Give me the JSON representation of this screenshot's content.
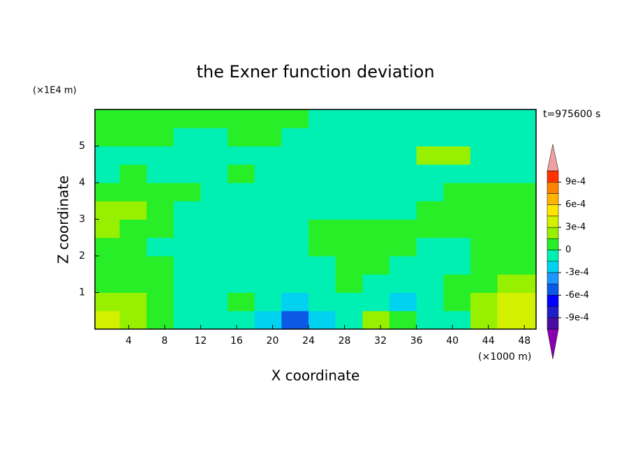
{
  "chart_data": {
    "type": "contour",
    "title": "the Exner function deviation",
    "x_label": "X coordinate",
    "y_label": "Z coordinate",
    "x_unit": "(×1000 m)",
    "y_unit": "(×1E4 m)",
    "time_label": "t=975600 s",
    "xlim": [
      0.25,
      49.3
    ],
    "ylim": [
      0,
      6
    ],
    "xticks": [
      4,
      8,
      12,
      16,
      20,
      24,
      28,
      32,
      36,
      40,
      44,
      48
    ],
    "yticks": [
      1,
      2,
      3,
      4,
      5
    ],
    "x": [
      1.5,
      4.5,
      7.5,
      10.5,
      13.5,
      16.5,
      19.5,
      22.5,
      25.5,
      28.5,
      31.5,
      34.5,
      37.5,
      40.5,
      43.5,
      46.5
    ],
    "y": [
      0.25,
      0.75,
      1.25,
      1.75,
      2.25,
      2.75,
      3.25,
      3.75,
      4.25,
      4.75,
      5.25,
      5.75
    ],
    "z": [
      [
        0.0004,
        0.0002,
        0.0001,
        -0.0001,
        -0.0001,
        -0.0001,
        -0.0002,
        -0.0005,
        -0.0002,
        -0.0001,
        0.0002,
        0.0001,
        -0.0001,
        -0.0001,
        0.0002,
        0.0004
      ],
      [
        0.0002,
        0.0002,
        0.0001,
        -0.0001,
        -0.0001,
        0.0001,
        -0.0001,
        -0.0002,
        -0.0001,
        -0.0001,
        -0.0001,
        -0.0002,
        -0.0001,
        0.0001,
        0.0002,
        0.0004
      ],
      [
        0.0001,
        0.0001,
        0.0001,
        -0.0001,
        -0.0001,
        -0.0001,
        -0.0001,
        -0.0001,
        -0.0001,
        0.0001,
        -0.0001,
        -0.0001,
        -0.0001,
        0.0001,
        0.0001,
        0.0002
      ],
      [
        0.0001,
        0.0001,
        0.0001,
        -0.0001,
        -0.0001,
        -0.0001,
        -0.0001,
        -0.0001,
        -0.0001,
        0.0001,
        0.0001,
        -0.0001,
        -0.0001,
        -0.0001,
        0.0001,
        0.0001
      ],
      [
        0.0001,
        0.0001,
        -0.0001,
        -0.0001,
        -0.0001,
        -0.0001,
        -0.0001,
        -0.0001,
        0.0001,
        0.0001,
        0.0001,
        0.0001,
        -0.0001,
        -0.0001,
        0.0001,
        0.0001
      ],
      [
        0.0002,
        0.0001,
        0.0001,
        -0.0001,
        -0.0001,
        -0.0001,
        -0.0001,
        -0.0001,
        0.0001,
        0.0001,
        0.0001,
        0.0001,
        0.0001,
        0.0001,
        0.0001,
        0.0001
      ],
      [
        0.0002,
        0.0002,
        0.0001,
        -0.0001,
        -0.0001,
        -0.0001,
        -0.0001,
        -0.0001,
        -0.0001,
        -0.0001,
        -0.0001,
        -0.0001,
        0.0001,
        0.0001,
        0.0001,
        0.0001
      ],
      [
        0.0001,
        0.0001,
        0.0001,
        0.0001,
        -0.0001,
        -0.0001,
        -0.0001,
        -0.0001,
        -0.0001,
        -0.0001,
        -0.0001,
        -0.0001,
        -0.0001,
        0.0001,
        0.0001,
        0.0001
      ],
      [
        -0.0001,
        0.0001,
        -0.0001,
        -0.0001,
        -0.0001,
        0.0001,
        -0.0001,
        -0.0001,
        -0.0001,
        -0.0001,
        -0.0001,
        -0.0001,
        -0.0001,
        -0.0001,
        -0.0001,
        -0.0001
      ],
      [
        -0.0001,
        -0.0001,
        -0.0001,
        -0.0001,
        -0.0001,
        -0.0001,
        -0.0001,
        -0.0001,
        -0.0001,
        -0.0001,
        -0.0001,
        -0.0001,
        0.0002,
        0.0002,
        -0.0001,
        -0.0001
      ],
      [
        0.0001,
        0.0001,
        0.0001,
        -0.0001,
        -0.0001,
        0.0001,
        0.0001,
        -0.0001,
        -0.0001,
        -0.0001,
        -0.0001,
        -0.0001,
        -0.0001,
        -0.0001,
        -0.0001,
        -0.0001
      ],
      [
        0.0001,
        0.0001,
        0.0001,
        0.0001,
        0.0001,
        0.0001,
        0.0001,
        0.0001,
        -0.0001,
        -0.0001,
        -0.0001,
        -0.0001,
        -0.0001,
        -0.0001,
        -0.0001,
        -0.0001
      ]
    ],
    "clim": [
      -0.00105,
      0.00105
    ],
    "colors": [
      "#4b0aa0",
      "#1e1ec8",
      "#0000ff",
      "#0a5ae6",
      "#1e96ff",
      "#00d2f0",
      "#00f0b4",
      "#28ee28",
      "#96f000",
      "#d2f000",
      "#ffe600",
      "#ffb400",
      "#ff8200",
      "#ff3200"
    ],
    "under_color": "#8a00b0",
    "over_color": "#f0a0a0",
    "cticks": [
      {
        "value": -0.0009,
        "label": "-9e-4"
      },
      {
        "value": -0.0006,
        "label": "-6e-4"
      },
      {
        "value": -0.0003,
        "label": "-3e-4"
      },
      0,
      {
        "value": 0.0003,
        "label": "3e-4"
      },
      {
        "value": 0.0006,
        "label": "6e-4"
      },
      {
        "value": 0.0009,
        "label": "9e-4"
      }
    ]
  }
}
